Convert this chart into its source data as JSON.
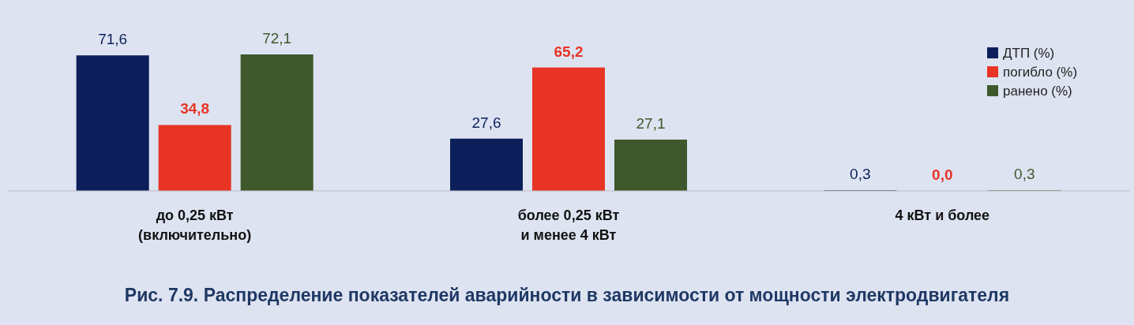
{
  "chart_data": {
    "type": "bar",
    "title": "Рис. 7.9. Распределение показателей аварийности в зависимости от мощности электродвигателя",
    "categories": [
      "до 0,25 кВт\n(включительно)",
      "более 0,25 кВт\nи менее 4 кВт",
      "4 кВт и более"
    ],
    "series": [
      {
        "name": "ДТП (%)",
        "color": "#0c1f5b",
        "values": [
          71.6,
          27.6,
          0.3
        ],
        "value_labels": [
          "71,6",
          "27,6",
          "0,3"
        ]
      },
      {
        "name": "погибло (%)",
        "color": "#e83425",
        "values": [
          34.8,
          65.2,
          0.0
        ],
        "value_labels": [
          "34,8",
          "65,2",
          "0,0"
        ]
      },
      {
        "name": "ранено (%)",
        "color": "#3e582b",
        "values": [
          72.1,
          27.1,
          0.3
        ],
        "value_labels": [
          "72,1",
          "27,1",
          "0,3"
        ]
      }
    ],
    "legend": "top right",
    "grid": false
  }
}
